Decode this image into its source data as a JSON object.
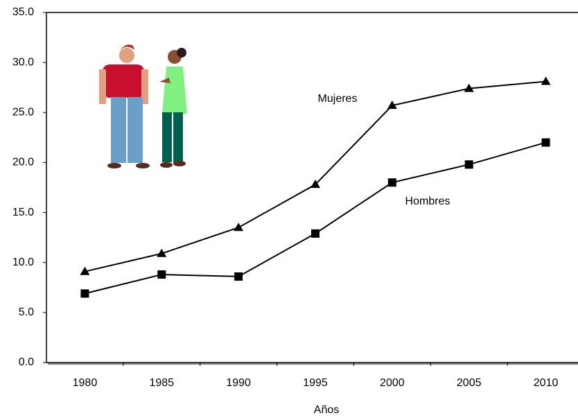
{
  "chart_data": {
    "type": "line",
    "x_label": "Años",
    "categories": [
      "1980",
      "1985",
      "1990",
      "1995",
      "2000",
      "2005",
      "2010"
    ],
    "series": [
      {
        "name": "Mujeres",
        "color": "#000000",
        "marker": "triangle",
        "values": [
          9.1,
          10.9,
          13.5,
          17.8,
          25.7,
          27.4,
          28.1
        ]
      },
      {
        "name": "Hombres",
        "color": "#000000",
        "marker": "square",
        "values": [
          6.9,
          8.8,
          8.6,
          12.9,
          18.0,
          19.8,
          22.0
        ]
      }
    ],
    "ylim": [
      0,
      35
    ],
    "yticks": [
      {
        "value": 0,
        "label": "0.0"
      },
      {
        "value": 5,
        "label": "5.0"
      },
      {
        "value": 10,
        "label": "10.0"
      },
      {
        "value": 15,
        "label": "15.0"
      },
      {
        "value": 20,
        "label": "20.0"
      },
      {
        "value": 25,
        "label": "25.0"
      },
      {
        "value": 30,
        "label": "30.0"
      },
      {
        "value": 35,
        "label": "35.0"
      }
    ],
    "grid": false
  }
}
